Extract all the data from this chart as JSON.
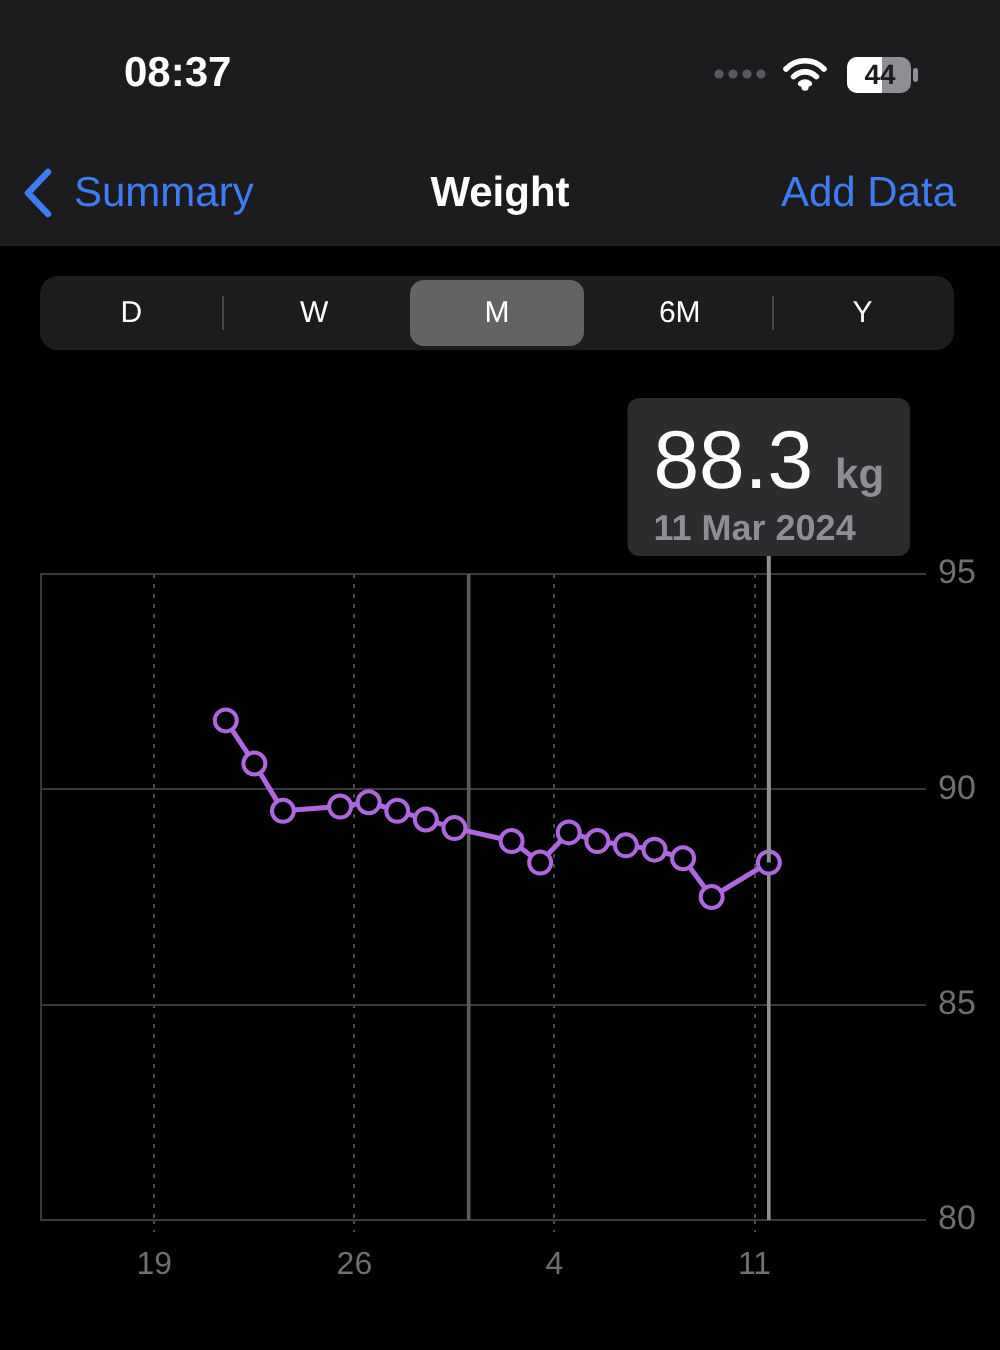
{
  "chart_data": {
    "type": "line",
    "title": "Weight",
    "x": [
      "2024-02-21T12:00",
      "2024-02-22T12:00",
      "2024-02-23T12:00",
      "2024-02-25T12:00",
      "2024-02-26T12:00",
      "2024-02-27T12:00",
      "2024-02-28T12:00",
      "2024-02-29T12:00",
      "2024-03-02T12:00",
      "2024-03-03T12:00",
      "2024-03-04T12:00",
      "2024-03-05T12:00",
      "2024-03-06T12:00",
      "2024-03-07T12:00",
      "2024-03-08T12:00",
      "2024-03-09T12:00",
      "2024-03-11T12:00"
    ],
    "series": [
      {
        "color": "#af67dd",
        "values": [
          91.6,
          90.6,
          89.5,
          89.6,
          89.7,
          89.5,
          89.3,
          89.1,
          88.8,
          88.3,
          89.0,
          88.8,
          88.7,
          88.6,
          88.4,
          87.5,
          88.3
        ]
      }
    ],
    "xlim": [
      "2024-02-15",
      "2024-03-17"
    ],
    "xticks": [
      {
        "value": "2024-02-19",
        "label": "19"
      },
      {
        "value": "2024-02-26",
        "label": "26"
      },
      {
        "value": "2024-03-04",
        "label": "4"
      },
      {
        "value": "2024-03-11",
        "label": "11"
      }
    ],
    "ylim": [
      80,
      95
    ],
    "yticks": [
      80,
      85,
      90,
      95
    ],
    "grid": true,
    "marker": "circle",
    "line_style": "solid",
    "ref_lines": [
      {
        "axis": "x",
        "value": "2024-03-01",
        "color": "#5a5a5e"
      },
      {
        "axis": "x",
        "value": "2024-03-11T12:00",
        "color": "#8e8e93"
      }
    ],
    "annotations": [
      "08:37",
      "44",
      "Summary",
      "Add Data",
      "D",
      "W",
      "M",
      "6M",
      "Y",
      {
        "text": "88.3 kg\n11 Mar 2024",
        "x": "2024-03-11T12:00",
        "y": 88.3
      }
    ]
  }
}
